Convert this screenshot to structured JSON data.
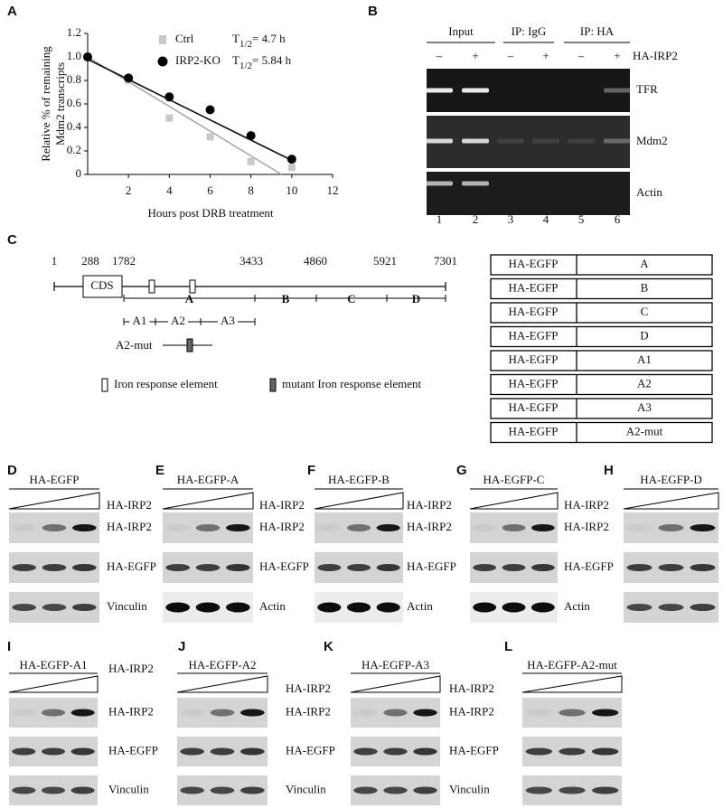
{
  "chart_data": {
    "type": "line",
    "letter": "A",
    "y_label": [
      "Relative % of remaining",
      "Mdm2 transcripts"
    ],
    "x_label": "Hours post DRB treatment",
    "xlim": [
      0,
      12
    ],
    "xticks": [
      2,
      4,
      6,
      8,
      10,
      12
    ],
    "ylim": [
      0,
      1.2
    ],
    "yticks": [
      0,
      0.2,
      0.4,
      0.6,
      0.8,
      {
        "value": 1,
        "label": "1.0"
      },
      1.2
    ],
    "series": [
      {
        "name": "Ctrl",
        "color": "#c8c8c8",
        "marker": "square",
        "half_life": {
          "symbol": "T",
          "subscript": "1/2",
          "text": "= 4.7 h"
        },
        "x": [
          0,
          2,
          4,
          6,
          8,
          10
        ],
        "values": [
          1.0,
          0.8,
          0.48,
          0.32,
          0.11,
          0.06
        ],
        "fit": {
          "x": [
            0,
            9.5
          ],
          "values": [
            1.0,
            0
          ]
        }
      },
      {
        "name": "IRP2-KO",
        "color": "#000000",
        "marker": "circle",
        "half_life": {
          "symbol": "T",
          "subscript": "1/2",
          "text": "= 5.84 h"
        },
        "x": [
          0,
          2,
          4,
          6,
          8,
          10
        ],
        "values": [
          1.0,
          0.82,
          0.66,
          0.55,
          0.33,
          0.13
        ],
        "fit": {
          "x": [
            0,
            10
          ],
          "values": [
            0.98,
            0.12
          ]
        }
      }
    ]
  },
  "gel_b": {
    "letter": "B",
    "groups": [
      "Input",
      "IP: IgG",
      "IP: HA"
    ],
    "signs": [
      "–",
      "+",
      "–",
      "+",
      "–",
      "+"
    ],
    "treatment": "HA-IRP2",
    "rows": [
      "TFR",
      "Mdm2",
      "Actin"
    ],
    "lanes": [
      "1",
      "2",
      "3",
      "4",
      "5",
      "6"
    ]
  },
  "map_c": {
    "letter": "C",
    "positions": [
      1,
      288,
      1782,
      3433,
      4860,
      5921,
      7301
    ],
    "cds": "CDS",
    "segments": [
      "A",
      "B",
      "C",
      "D"
    ],
    "subsegments": [
      "A1",
      "A2",
      "A3"
    ],
    "mutant": "A2-mut",
    "legend": [
      "Iron response element",
      "mutant Iron response element"
    ],
    "constructs": [
      [
        "HA-EGFP",
        "A"
      ],
      [
        "HA-EGFP",
        "B"
      ],
      [
        "HA-EGFP",
        "C"
      ],
      [
        "HA-EGFP",
        "D"
      ],
      [
        "HA-EGFP",
        "A1"
      ],
      [
        "HA-EGFP",
        "A2"
      ],
      [
        "HA-EGFP",
        "A3"
      ],
      [
        "HA-EGFP",
        "A2-mut"
      ]
    ]
  },
  "blots": [
    {
      "letter": "D",
      "title": "HA-EGFP",
      "dose": "HA-IRP2",
      "rows": [
        "HA-IRP2",
        "HA-EGFP",
        "Vinculin"
      ]
    },
    {
      "letter": "E",
      "title": "HA-EGFP-A",
      "dose": "HA-IRP2",
      "rows": [
        "HA-IRP2",
        "HA-EGFP",
        "Actin"
      ]
    },
    {
      "letter": "F",
      "title": "HA-EGFP-B",
      "dose": "HA-IRP2",
      "rows": [
        "HA-IRP2",
        "HA-EGFP",
        "Actin"
      ]
    },
    {
      "letter": "G",
      "title": "HA-EGFP-C",
      "dose": "HA-IRP2",
      "rows": [
        "HA-IRP2",
        "HA-EGFP",
        "Actin"
      ]
    },
    {
      "letter": "H",
      "title": "HA-EGFP-D"
    },
    {
      "letter": "I",
      "title": "HA-EGFP-A1",
      "dose": "HA-IRP2",
      "rows": [
        "HA-IRP2",
        "HA-EGFP",
        "Vinculin"
      ]
    },
    {
      "letter": "J",
      "title": "HA-EGFP-A2",
      "dose": "HA-IRP2",
      "rows": [
        "HA-IRP2",
        "HA-EGFP",
        "Vinculin"
      ]
    },
    {
      "letter": "K",
      "title": "HA-EGFP-A3",
      "dose": "HA-IRP2",
      "rows": [
        "HA-IRP2",
        "HA-EGFP",
        "Vinculin"
      ]
    },
    {
      "letter": "L",
      "title": "HA-EGFP-A2-mut"
    }
  ]
}
